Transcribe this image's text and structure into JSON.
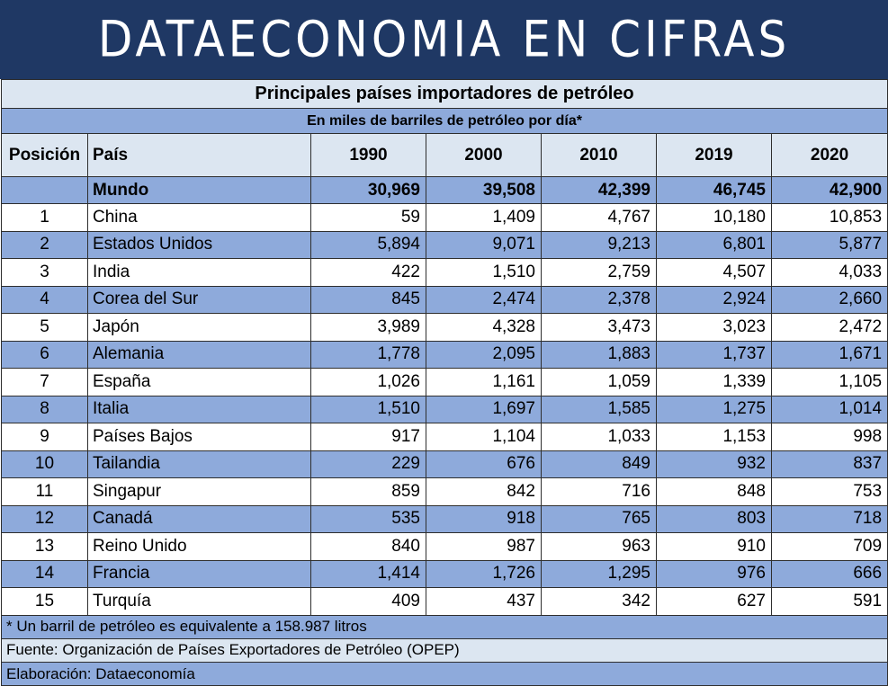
{
  "banner": "DATAECONOMIA EN CIFRAS",
  "table": {
    "title": "Principales países importadores de petróleo",
    "subtitle": "En miles de barriles de petróleo por día*",
    "headers": [
      "Posición",
      "País",
      "1990",
      "2000",
      "2010",
      "2019",
      "2020"
    ],
    "world": {
      "pos": "",
      "country": "Mundo",
      "v": [
        "30,969",
        "39,508",
        "42,399",
        "46,745",
        "42,900"
      ]
    },
    "rows": [
      {
        "pos": "1",
        "country": "China",
        "v": [
          "59",
          "1,409",
          "4,767",
          "10,180",
          "10,853"
        ]
      },
      {
        "pos": "2",
        "country": "Estados Unidos",
        "v": [
          "5,894",
          "9,071",
          "9,213",
          "6,801",
          "5,877"
        ]
      },
      {
        "pos": "3",
        "country": "India",
        "v": [
          "422",
          "1,510",
          "2,759",
          "4,507",
          "4,033"
        ]
      },
      {
        "pos": "4",
        "country": "Corea del Sur",
        "v": [
          "845",
          "2,474",
          "2,378",
          "2,924",
          "2,660"
        ]
      },
      {
        "pos": "5",
        "country": "Japón",
        "v": [
          "3,989",
          "4,328",
          "3,473",
          "3,023",
          "2,472"
        ]
      },
      {
        "pos": "6",
        "country": "Alemania",
        "v": [
          "1,778",
          "2,095",
          "1,883",
          "1,737",
          "1,671"
        ]
      },
      {
        "pos": "7",
        "country": "España",
        "v": [
          "1,026",
          "1,161",
          "1,059",
          "1,339",
          "1,105"
        ]
      },
      {
        "pos": "8",
        "country": "Italia",
        "v": [
          "1,510",
          "1,697",
          "1,585",
          "1,275",
          "1,014"
        ]
      },
      {
        "pos": "9",
        "country": "Países Bajos",
        "v": [
          "917",
          "1,104",
          "1,033",
          "1,153",
          "998"
        ]
      },
      {
        "pos": "10",
        "country": "Tailandia",
        "v": [
          "229",
          "676",
          "849",
          "932",
          "837"
        ]
      },
      {
        "pos": "11",
        "country": "Singapur",
        "v": [
          "859",
          "842",
          "716",
          "848",
          "753"
        ]
      },
      {
        "pos": "12",
        "country": "Canadá",
        "v": [
          "535",
          "918",
          "765",
          "803",
          "718"
        ]
      },
      {
        "pos": "13",
        "country": "Reino Unido",
        "v": [
          "840",
          "987",
          "963",
          "910",
          "709"
        ]
      },
      {
        "pos": "14",
        "country": "Francia",
        "v": [
          "1,414",
          "1,726",
          "1,295",
          "976",
          "666"
        ]
      },
      {
        "pos": "15",
        "country": "Turquía",
        "v": [
          "409",
          "437",
          "342",
          "627",
          "591"
        ]
      }
    ]
  },
  "footer": {
    "note": "* Un barril de petróleo es equivalente a 158.987 litros",
    "source": "Fuente: Organización de Países Exportadores de Petróleo (OPEP)",
    "credit": "Elaboración: Dataeconomía"
  },
  "colors": {
    "banner": "#1f3864",
    "band_dark": "#8eaadb",
    "band_light": "#dce6f1"
  }
}
